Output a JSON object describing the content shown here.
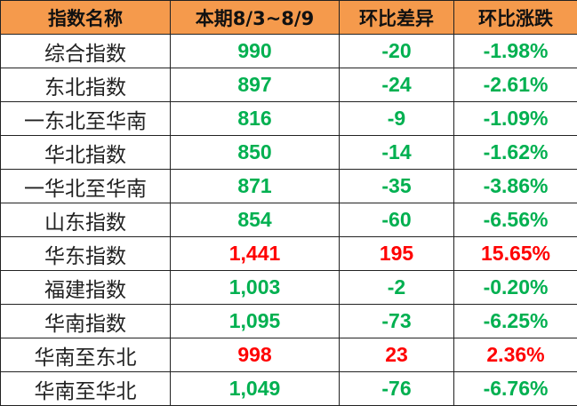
{
  "colors": {
    "header_bg": "#F59A4C",
    "up": "#FF0000",
    "down": "#00B050"
  },
  "headers": [
    "指数名称",
    "本期8/3~8/9",
    "环比差异",
    "环比涨跌"
  ],
  "rows": [
    {
      "name": "综合指数",
      "current": "990",
      "diff": "-20",
      "pct": "-1.98%",
      "trend": "down"
    },
    {
      "name": "东北指数",
      "current": "897",
      "diff": "-24",
      "pct": "-2.61%",
      "trend": "down"
    },
    {
      "name": "一东北至华南",
      "current": "816",
      "diff": "-9",
      "pct": "-1.09%",
      "trend": "down"
    },
    {
      "name": "华北指数",
      "current": "850",
      "diff": "-14",
      "pct": "-1.62%",
      "trend": "down"
    },
    {
      "name": "一华北至华南",
      "current": "871",
      "diff": "-35",
      "pct": "-3.86%",
      "trend": "down"
    },
    {
      "name": "山东指数",
      "current": "854",
      "diff": "-60",
      "pct": "-6.56%",
      "trend": "down"
    },
    {
      "name": "华东指数",
      "current": "1,441",
      "diff": "195",
      "pct": "15.65%",
      "trend": "up"
    },
    {
      "name": "福建指数",
      "current": "1,003",
      "diff": "-2",
      "pct": "-0.20%",
      "trend": "down"
    },
    {
      "name": "华南指数",
      "current": "1,095",
      "diff": "-73",
      "pct": "-6.25%",
      "trend": "down"
    },
    {
      "name": "华南至东北",
      "current": "998",
      "diff": "23",
      "pct": "2.36%",
      "trend": "up"
    },
    {
      "name": "华南至华北",
      "current": "1,049",
      "diff": "-76",
      "pct": "-6.76%",
      "trend": "down"
    }
  ]
}
